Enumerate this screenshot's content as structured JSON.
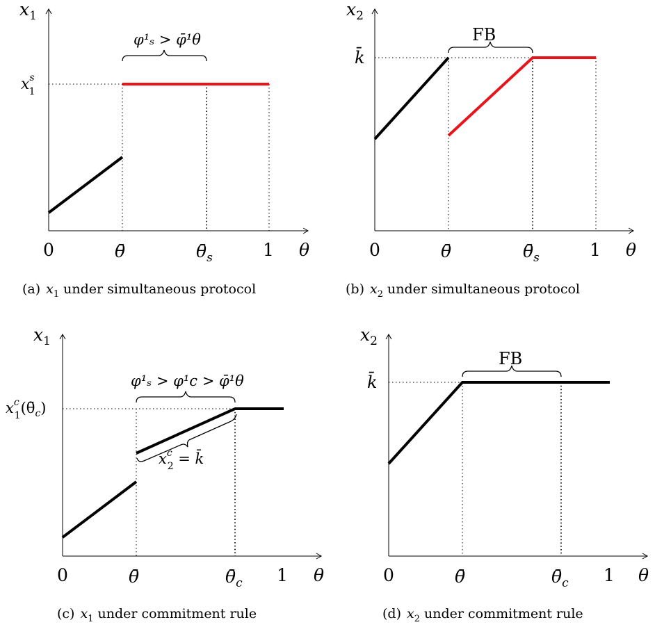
{
  "panels": {
    "a": {
      "y_axis_label": "x",
      "y_axis_sub": "1",
      "ytick_label": "x",
      "ytick_sup": "s",
      "ytick_sub": "1",
      "xtick_0": "0",
      "xtick_theta_bar": "θ̄",
      "xtick_theta_s": "θ̄",
      "xtick_theta_s_sub": "s",
      "xtick_1": "1",
      "x_axis_label": "θ",
      "annotation": "φ¹ₛ > φ̄¹θ",
      "caption_id": "(a)",
      "caption_var": "x",
      "caption_var_sub": "1",
      "caption_text": "under simultaneous protocol"
    },
    "b": {
      "y_axis_label": "x",
      "y_axis_sub": "2",
      "ytick_label": "k̄",
      "xtick_0": "0",
      "xtick_theta_bar": "θ̄",
      "xtick_theta_s": "θ̄",
      "xtick_theta_s_sub": "s",
      "xtick_1": "1",
      "x_axis_label": "θ",
      "annotation": "FB",
      "caption_id": "(b)",
      "caption_var": "x",
      "caption_var_sub": "2",
      "caption_text": "under simultaneous protocol"
    },
    "c": {
      "y_axis_label": "x",
      "y_axis_sub": "1",
      "ytick_label": "x",
      "ytick_sup": "c",
      "ytick_sub": "1",
      "ytick_arg": "(θ̄",
      "ytick_arg_sub": "c",
      "ytick_arg_close": ")",
      "xtick_0": "0",
      "xtick_theta_bar": "θ̄",
      "xtick_theta_c": "θ̄",
      "xtick_theta_c_sub": "c",
      "xtick_1": "1",
      "x_axis_label": "θ",
      "annotation": "φ¹ₛ > φ¹c > φ̄¹θ",
      "annotation2": "x",
      "annotation2_sup": "c",
      "annotation2_sub": "2",
      "annotation2_rest": " = k̄",
      "caption_id": "(c)",
      "caption_var": "x",
      "caption_var_sub": "1",
      "caption_text": "under commitment rule"
    },
    "d": {
      "y_axis_label": "x",
      "y_axis_sub": "2",
      "ytick_label": "k̄",
      "xtick_0": "0",
      "xtick_theta_bar": "θ̄",
      "xtick_theta_c": "θ̄",
      "xtick_theta_c_sub": "c",
      "xtick_1": "1",
      "x_axis_label": "θ",
      "annotation": "FB",
      "caption_id": "(d)",
      "caption_var": "x",
      "caption_var_sub": "2",
      "caption_text": "under commitment rule"
    }
  },
  "colors": {
    "black_line": "#000000",
    "red_line": "#e8141b"
  }
}
